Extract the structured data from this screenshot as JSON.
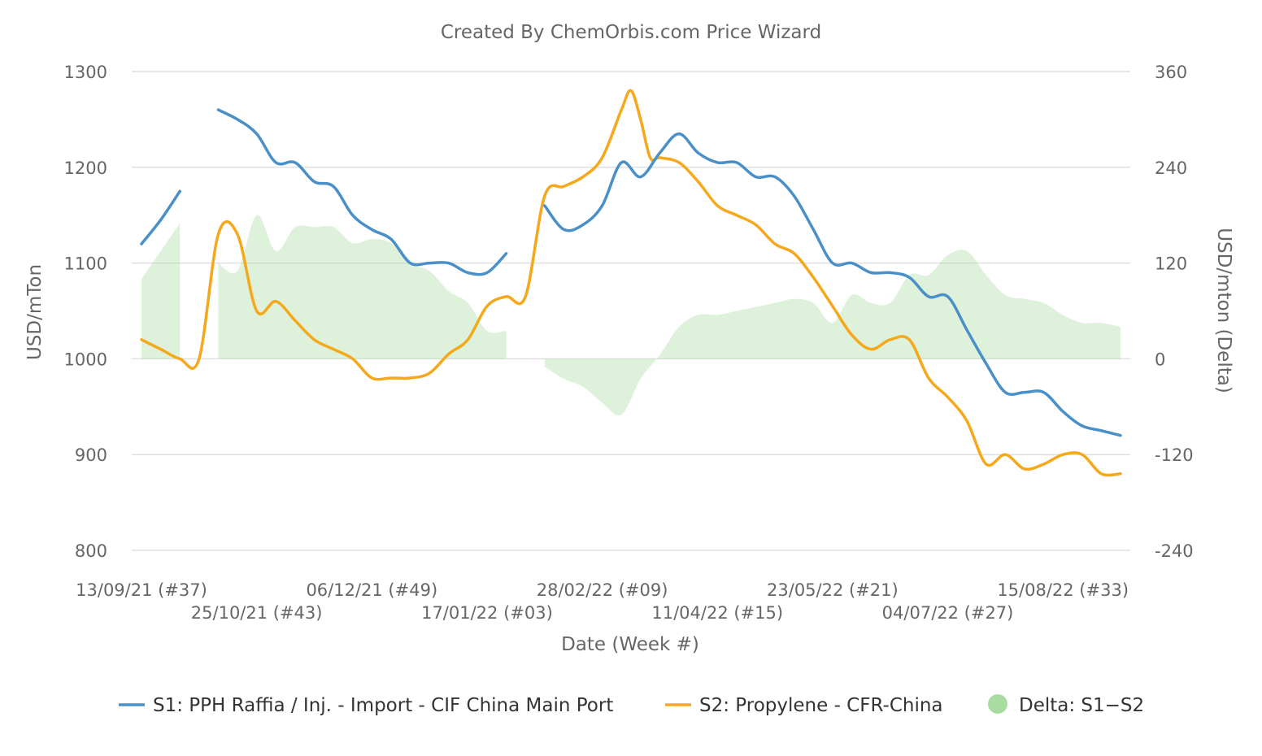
{
  "chart_data": {
    "type": "line",
    "title": "Created By ChemOrbis.com Price Wizard",
    "xlabel": "Date (Week #)",
    "ylabel": "USD/mTon",
    "y2label": "USD/mton (Delta)",
    "ylim": [
      800,
      1300
    ],
    "y2lim": [
      -240,
      360
    ],
    "yticks": [
      800,
      900,
      1000,
      1100,
      1200,
      1300
    ],
    "y2ticks": [
      -240,
      -120,
      0,
      120,
      240,
      360
    ],
    "grid": true,
    "legend_position": "bottom",
    "x_start": "13/09/21",
    "x_end": "29/08/22",
    "x_tick_labels": [
      "13/09/21 (#37)",
      "25/10/21 (#43)",
      "06/12/21 (#49)",
      "17/01/22 (#03)",
      "28/02/22 (#09)",
      "11/04/22 (#15)",
      "23/05/22 (#21)",
      "04/07/22 (#27)",
      "15/08/22 (#33)"
    ],
    "x_tick_weeks": [
      0,
      6,
      12,
      18,
      24,
      30,
      36,
      42,
      48
    ],
    "x_weeks_total": 50,
    "series": [
      {
        "name": "S1: PPH Raffia / Inj. - Import - CIF China Main Port",
        "color": "#4a90c8",
        "type": "line",
        "points": [
          [
            0,
            1120
          ],
          [
            1,
            1145
          ],
          [
            2,
            1175
          ],
          [
            4,
            1260
          ],
          [
            5,
            1250
          ],
          [
            6,
            1235
          ],
          [
            7,
            1205
          ],
          [
            8,
            1205
          ],
          [
            9,
            1185
          ],
          [
            10,
            1180
          ],
          [
            11,
            1150
          ],
          [
            12,
            1135
          ],
          [
            13,
            1125
          ],
          [
            14,
            1100
          ],
          [
            15,
            1100
          ],
          [
            16,
            1100
          ],
          [
            17,
            1090
          ],
          [
            18,
            1090
          ],
          [
            19,
            1110
          ],
          [
            21,
            1160
          ],
          [
            22,
            1135
          ],
          [
            23,
            1140
          ],
          [
            24,
            1160
          ],
          [
            25,
            1205
          ],
          [
            26,
            1190
          ],
          [
            27,
            1215
          ],
          [
            28,
            1235
          ],
          [
            29,
            1215
          ],
          [
            30,
            1205
          ],
          [
            31,
            1205
          ],
          [
            32,
            1190
          ],
          [
            33,
            1190
          ],
          [
            34,
            1170
          ],
          [
            35,
            1135
          ],
          [
            36,
            1100
          ],
          [
            37,
            1100
          ],
          [
            38,
            1090
          ],
          [
            39,
            1090
          ],
          [
            40,
            1085
          ],
          [
            41,
            1065
          ],
          [
            42,
            1065
          ],
          [
            43,
            1030
          ],
          [
            44,
            995
          ],
          [
            45,
            965
          ],
          [
            46,
            965
          ],
          [
            47,
            965
          ],
          [
            48,
            945
          ],
          [
            49,
            930
          ],
          [
            50,
            925
          ],
          [
            51,
            920
          ]
        ]
      },
      {
        "name": "S2: Propylene - CFR-China",
        "color": "#f5a81c",
        "type": "line",
        "points": [
          [
            0,
            1020
          ],
          [
            1,
            1010
          ],
          [
            2,
            1000
          ],
          [
            3,
            1000
          ],
          [
            4,
            1130
          ],
          [
            5,
            1130
          ],
          [
            6,
            1050
          ],
          [
            7,
            1060
          ],
          [
            8,
            1040
          ],
          [
            9,
            1020
          ],
          [
            10,
            1010
          ],
          [
            11,
            1000
          ],
          [
            12,
            980
          ],
          [
            13,
            980
          ],
          [
            14,
            980
          ],
          [
            15,
            985
          ],
          [
            16,
            1005
          ],
          [
            17,
            1020
          ],
          [
            18,
            1055
          ],
          [
            19,
            1065
          ],
          [
            20,
            1065
          ],
          [
            21,
            1170
          ],
          [
            22,
            1180
          ],
          [
            23,
            1190
          ],
          [
            24,
            1210
          ],
          [
            25,
            1260
          ],
          [
            25.5,
            1280
          ],
          [
            26,
            1250
          ],
          [
            26.5,
            1210
          ],
          [
            27,
            1210
          ],
          [
            28,
            1205
          ],
          [
            29,
            1185
          ],
          [
            30,
            1160
          ],
          [
            31,
            1150
          ],
          [
            32,
            1140
          ],
          [
            33,
            1120
          ],
          [
            34,
            1110
          ],
          [
            35,
            1085
          ],
          [
            36,
            1055
          ],
          [
            37,
            1025
          ],
          [
            38,
            1010
          ],
          [
            39,
            1020
          ],
          [
            40,
            1020
          ],
          [
            41,
            980
          ],
          [
            42,
            960
          ],
          [
            43,
            935
          ],
          [
            44,
            890
          ],
          [
            45,
            900
          ],
          [
            46,
            885
          ],
          [
            47,
            890
          ],
          [
            48,
            900
          ],
          [
            49,
            900
          ],
          [
            50,
            880
          ],
          [
            51,
            880
          ]
        ]
      },
      {
        "name": "Delta: S1−S2",
        "color": "#a8dca0",
        "type": "area",
        "points": [
          [
            0,
            100
          ],
          [
            1,
            135
          ],
          [
            2,
            170
          ],
          [
            4,
            120
          ],
          [
            5,
            110
          ],
          [
            6,
            180
          ],
          [
            7,
            135
          ],
          [
            8,
            165
          ],
          [
            9,
            165
          ],
          [
            10,
            165
          ],
          [
            11,
            145
          ],
          [
            12,
            150
          ],
          [
            13,
            145
          ],
          [
            14,
            120
          ],
          [
            15,
            110
          ],
          [
            16,
            85
          ],
          [
            17,
            70
          ],
          [
            18,
            35
          ],
          [
            19,
            35
          ],
          [
            21,
            -10
          ],
          [
            22,
            -25
          ],
          [
            23,
            -35
          ],
          [
            24,
            -55
          ],
          [
            25,
            -70
          ],
          [
            26,
            -25
          ],
          [
            27,
            5
          ],
          [
            28,
            40
          ],
          [
            29,
            55
          ],
          [
            30,
            55
          ],
          [
            31,
            60
          ],
          [
            32,
            65
          ],
          [
            33,
            70
          ],
          [
            34,
            75
          ],
          [
            35,
            70
          ],
          [
            36,
            45
          ],
          [
            37,
            80
          ],
          [
            38,
            70
          ],
          [
            39,
            70
          ],
          [
            40,
            105
          ],
          [
            41,
            105
          ],
          [
            42,
            130
          ],
          [
            43,
            135
          ],
          [
            44,
            105
          ],
          [
            45,
            80
          ],
          [
            46,
            75
          ],
          [
            47,
            70
          ],
          [
            48,
            55
          ],
          [
            49,
            45
          ],
          [
            50,
            45
          ],
          [
            51,
            40
          ]
        ]
      }
    ],
    "gaps_weeks": [
      [
        2.1,
        3.9
      ],
      [
        19.1,
        20.9
      ]
    ]
  }
}
